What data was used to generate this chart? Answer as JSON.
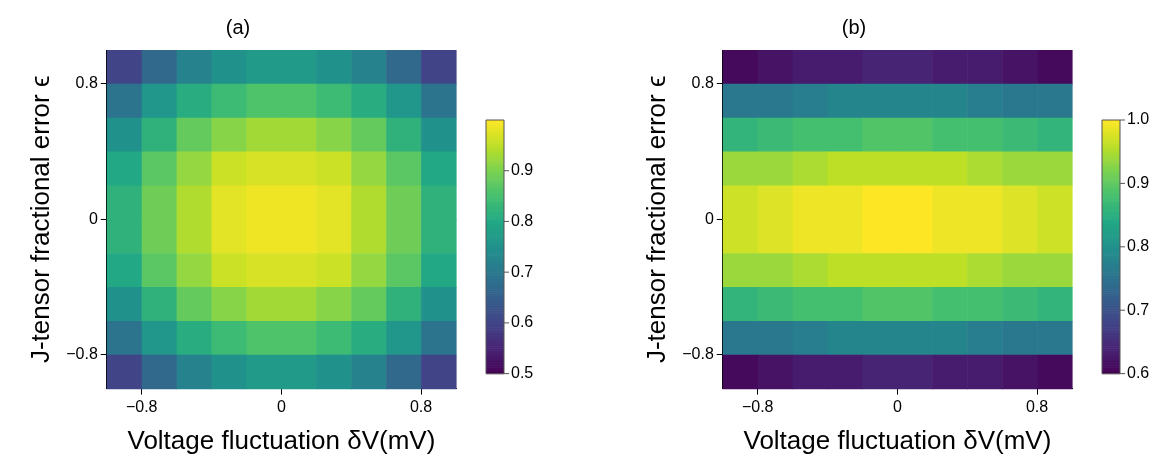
{
  "chart_data": [
    {
      "type": "heatmap",
      "title": "(a)",
      "xlabel": "Voltage fluctuation δV(mV)",
      "ylabel": "J-tensor fractional error ϵ",
      "x": [
        -0.9,
        -0.7,
        -0.5,
        -0.3,
        -0.1,
        0.1,
        0.3,
        0.5,
        0.7,
        0.9
      ],
      "y": [
        0.9,
        0.7,
        0.5,
        0.3,
        0.1,
        -0.1,
        -0.3,
        -0.5,
        -0.7,
        -0.9
      ],
      "xlim": [
        -1,
        1
      ],
      "xticks": [
        -0.8,
        0,
        0.8
      ],
      "ylim": [
        -1,
        1
      ],
      "yticks": [
        -0.8,
        0,
        0.8
      ],
      "cells": [
        [
          0.6,
          0.67,
          0.72,
          0.75,
          0.77,
          0.77,
          0.75,
          0.72,
          0.67,
          0.6
        ],
        [
          0.69,
          0.76,
          0.81,
          0.84,
          0.86,
          0.86,
          0.84,
          0.81,
          0.76,
          0.69
        ],
        [
          0.75,
          0.82,
          0.88,
          0.91,
          0.93,
          0.93,
          0.91,
          0.88,
          0.82,
          0.75
        ],
        [
          0.8,
          0.87,
          0.92,
          0.96,
          0.97,
          0.97,
          0.96,
          0.92,
          0.87,
          0.8
        ],
        [
          0.82,
          0.89,
          0.94,
          0.98,
          0.99,
          0.99,
          0.98,
          0.94,
          0.89,
          0.82
        ],
        [
          0.82,
          0.89,
          0.94,
          0.98,
          0.99,
          0.99,
          0.98,
          0.94,
          0.89,
          0.82
        ],
        [
          0.8,
          0.87,
          0.92,
          0.96,
          0.97,
          0.97,
          0.96,
          0.92,
          0.87,
          0.8
        ],
        [
          0.75,
          0.82,
          0.88,
          0.91,
          0.93,
          0.93,
          0.91,
          0.88,
          0.82,
          0.75
        ],
        [
          0.69,
          0.76,
          0.81,
          0.84,
          0.86,
          0.86,
          0.84,
          0.81,
          0.76,
          0.69
        ],
        [
          0.6,
          0.67,
          0.72,
          0.75,
          0.77,
          0.77,
          0.75,
          0.72,
          0.67,
          0.6
        ]
      ],
      "clim": [
        0.5,
        1.0
      ],
      "cticks": [
        0.5,
        0.6,
        0.7,
        0.8,
        0.9
      ]
    },
    {
      "type": "heatmap",
      "title": "(b)",
      "xlabel": "Voltage fluctuation δV(mV)",
      "ylabel": "J-tensor fractional error ϵ",
      "x": [
        -0.9,
        -0.7,
        -0.5,
        -0.3,
        -0.1,
        0.1,
        0.3,
        0.5,
        0.7,
        0.9
      ],
      "y": [
        0.9,
        0.7,
        0.5,
        0.3,
        0.1,
        -0.1,
        -0.3,
        -0.5,
        -0.7,
        -0.9
      ],
      "xlim": [
        -1,
        1
      ],
      "xticks": [
        -0.8,
        0,
        0.8
      ],
      "ylim": [
        -1,
        1
      ],
      "yticks": [
        -0.8,
        0,
        0.8
      ],
      "cells": [
        [
          0.61,
          0.62,
          0.63,
          0.63,
          0.64,
          0.64,
          0.63,
          0.63,
          0.62,
          0.61
        ],
        [
          0.76,
          0.76,
          0.77,
          0.78,
          0.78,
          0.78,
          0.78,
          0.77,
          0.76,
          0.76
        ],
        [
          0.86,
          0.87,
          0.88,
          0.88,
          0.89,
          0.89,
          0.88,
          0.88,
          0.87,
          0.86
        ],
        [
          0.94,
          0.94,
          0.95,
          0.96,
          0.96,
          0.96,
          0.96,
          0.95,
          0.94,
          0.94
        ],
        [
          0.97,
          0.98,
          0.99,
          0.99,
          1.0,
          1.0,
          0.99,
          0.99,
          0.98,
          0.97
        ],
        [
          0.97,
          0.98,
          0.99,
          0.99,
          1.0,
          1.0,
          0.99,
          0.99,
          0.98,
          0.97
        ],
        [
          0.94,
          0.94,
          0.95,
          0.96,
          0.96,
          0.96,
          0.96,
          0.95,
          0.94,
          0.94
        ],
        [
          0.86,
          0.87,
          0.88,
          0.88,
          0.89,
          0.89,
          0.88,
          0.88,
          0.87,
          0.86
        ],
        [
          0.76,
          0.76,
          0.77,
          0.78,
          0.78,
          0.78,
          0.78,
          0.77,
          0.76,
          0.76
        ],
        [
          0.61,
          0.62,
          0.63,
          0.63,
          0.64,
          0.64,
          0.63,
          0.63,
          0.62,
          0.61
        ]
      ],
      "clim": [
        0.6,
        1.0
      ],
      "cticks": [
        0.6,
        0.7,
        0.8,
        0.9,
        {
          "value": 1.0,
          "label": "1.0"
        }
      ]
    }
  ]
}
